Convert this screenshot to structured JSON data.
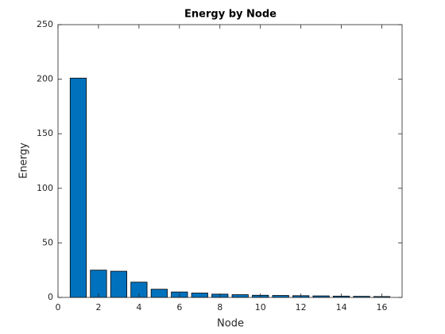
{
  "chart_data": {
    "type": "bar",
    "title": "Energy by Node",
    "x_label": "Node",
    "y_label": "Energy",
    "x": [
      1,
      2,
      3,
      4,
      5,
      6,
      7,
      8,
      9,
      10,
      11,
      12,
      13,
      14,
      15,
      16
    ],
    "values": [
      201,
      25,
      24,
      14,
      7.5,
      5,
      4,
      3,
      2.5,
      2,
      1.8,
      1.6,
      1.4,
      1.2,
      1,
      0.8
    ],
    "color": "#0072bd",
    "xlim": [
      0,
      17
    ],
    "xticks": [
      0,
      2,
      4,
      6,
      8,
      10,
      12,
      14,
      16
    ],
    "ylim": [
      0,
      250
    ],
    "yticks": [
      0,
      50,
      100,
      150,
      200,
      250
    ]
  }
}
